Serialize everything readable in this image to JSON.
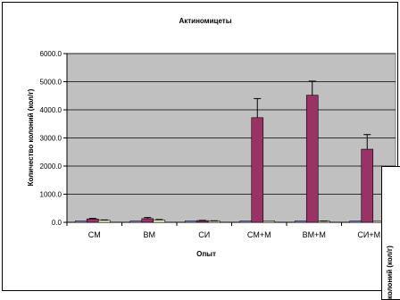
{
  "chart_data": {
    "type": "bar",
    "title": "Актиномицеты",
    "xlabel": "Опыт",
    "ylabel": "Количество колоний (кол/г)",
    "ylim": [
      0,
      6000
    ],
    "yticks": [
      "0.0",
      "1000.0",
      "2000.0",
      "3000.0",
      "4000.0",
      "5000.0",
      "6000.0"
    ],
    "categories": [
      "СМ",
      "ВМ",
      "СИ",
      "СМ+М",
      "ВМ+М",
      "СИ+М"
    ],
    "series": [
      {
        "color": "#9999ff",
        "values": [
          10,
          15,
          10,
          10,
          10,
          10
        ],
        "errors": [
          0,
          0,
          0,
          0,
          0,
          0
        ]
      },
      {
        "color": "#993366",
        "values": [
          120,
          130,
          60,
          3720,
          4520,
          2600
        ],
        "errors": [
          20,
          40,
          10,
          680,
          500,
          520
        ]
      },
      {
        "color": "#ffffcc",
        "values": [
          70,
          80,
          45,
          25,
          35,
          20
        ],
        "errors": [
          15,
          20,
          10,
          0,
          10,
          0
        ]
      }
    ],
    "grid": true,
    "legend": "none"
  },
  "inset": {
    "ylabel_fragment": "колоний (кол/г)"
  },
  "colors": {
    "plot_bg": "#c0c0c0",
    "frame": "#000000",
    "gridline": "#000000"
  }
}
